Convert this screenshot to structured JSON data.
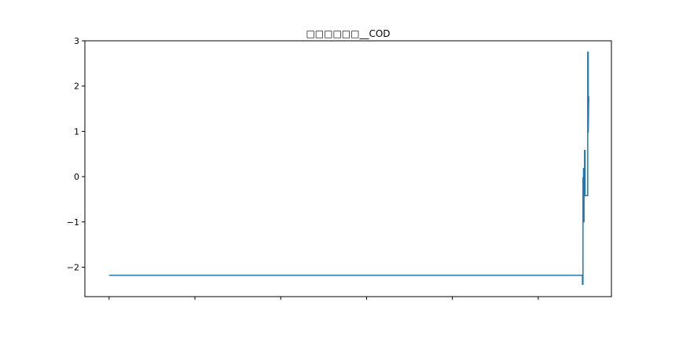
{
  "chart_data": {
    "type": "line",
    "title": "□□□□□□__COD",
    "xlabel": "",
    "ylabel": "",
    "xlim": [
      0,
      1
    ],
    "ylim": [
      -2.65,
      3.0
    ],
    "yticks": [
      {
        "value": 3,
        "label": "3"
      },
      {
        "value": 2,
        "label": "2"
      },
      {
        "value": 1,
        "label": "1"
      },
      {
        "value": 0,
        "label": "0"
      },
      {
        "value": -1,
        "label": "−1"
      },
      {
        "value": -2,
        "label": "−2"
      }
    ],
    "xticks": [
      0.046,
      0.209,
      0.372,
      0.535,
      0.698,
      0.861
    ],
    "grid": false,
    "series": [
      {
        "color": "#1f77b4",
        "x": [
          0.046,
          0.945,
          0.945,
          0.946,
          0.946,
          0.947,
          0.947,
          0.948,
          0.948,
          0.949,
          0.949,
          0.95,
          0.95,
          0.951,
          0.951,
          0.955,
          0.955,
          0.956,
          0.956,
          0.957,
          0.957
        ],
        "y": [
          -2.18,
          -2.18,
          -2.38,
          -2.38,
          -0.02,
          -0.02,
          0.18,
          -1.0,
          0.1,
          0.1,
          0.58,
          0.58,
          -0.42,
          -0.42,
          -0.42,
          -0.42,
          2.75,
          2.75,
          0.98,
          1.78,
          1.78
        ]
      }
    ]
  }
}
